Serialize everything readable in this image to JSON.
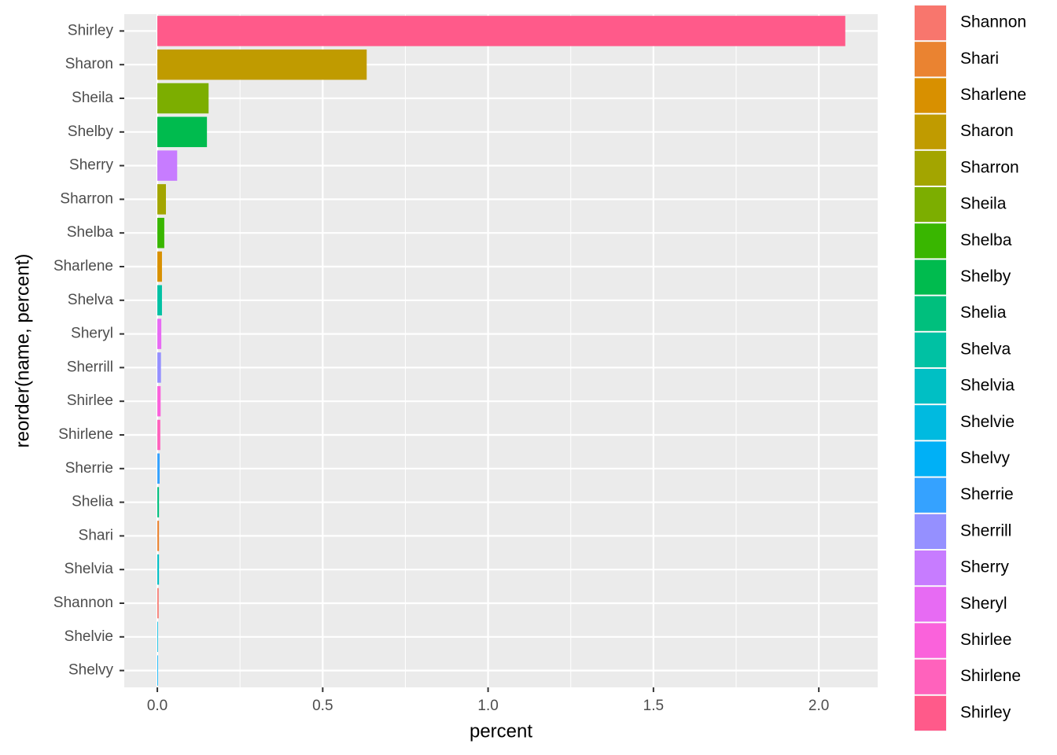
{
  "chart_data": {
    "type": "bar",
    "orientation": "horizontal",
    "x_label": "percent",
    "y_label": "reorder(name, percent)",
    "categories": [
      "Shirley",
      "Sharon",
      "Sheila",
      "Shelby",
      "Sherry",
      "Sharron",
      "Shelba",
      "Sharlene",
      "Shelva",
      "Sheryl",
      "Sherrill",
      "Shirlee",
      "Shirlene",
      "Sherrie",
      "Shelia",
      "Shari",
      "Shelvia",
      "Shannon",
      "Shelvie",
      "Shelvy"
    ],
    "values": [
      2.08,
      0.633,
      0.155,
      0.15,
      0.06,
      0.026,
      0.021,
      0.014,
      0.014,
      0.012,
      0.011,
      0.01,
      0.009,
      0.007,
      0.005,
      0.005,
      0.005,
      0.004,
      0.002,
      0.002
    ],
    "xlim": [
      -0.1,
      2.178
    ],
    "xticks": [
      {
        "value": 0,
        "label": "0.0"
      },
      0.5,
      {
        "value": 1,
        "label": "1.0"
      },
      1.5,
      {
        "value": 2,
        "label": "2.0"
      }
    ],
    "grid": true,
    "legend_position": "right",
    "legend": [
      {
        "name": "Shannon",
        "color": "#F8766D"
      },
      {
        "name": "Shari",
        "color": "#EA8331"
      },
      {
        "name": "Sharlene",
        "color": "#D89000"
      },
      {
        "name": "Sharon",
        "color": "#C09B00"
      },
      {
        "name": "Sharron",
        "color": "#A3A500"
      },
      {
        "name": "Sheila",
        "color": "#7CAE00"
      },
      {
        "name": "Shelba",
        "color": "#39B600"
      },
      {
        "name": "Shelby",
        "color": "#00BB4E"
      },
      {
        "name": "Shelia",
        "color": "#00BF7D"
      },
      {
        "name": "Shelva",
        "color": "#00C1A3"
      },
      {
        "name": "Shelvia",
        "color": "#00BFC4"
      },
      {
        "name": "Shelvie",
        "color": "#00BAE0"
      },
      {
        "name": "Shelvy",
        "color": "#00B0F6"
      },
      {
        "name": "Sherrie",
        "color": "#35A2FF"
      },
      {
        "name": "Sherrill",
        "color": "#9590FF"
      },
      {
        "name": "Sherry",
        "color": "#C77CFF"
      },
      {
        "name": "Sheryl",
        "color": "#E76BF3"
      },
      {
        "name": "Shirlee",
        "color": "#FA62DB"
      },
      {
        "name": "Shirlene",
        "color": "#FF62BC"
      },
      {
        "name": "Shirley",
        "color": "#FF5A8A"
      }
    ]
  }
}
